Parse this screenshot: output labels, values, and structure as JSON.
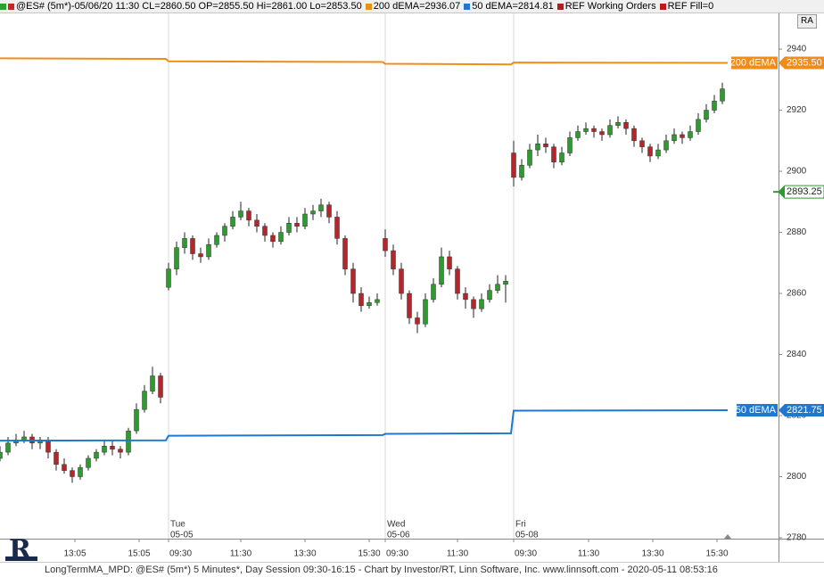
{
  "header": {
    "items": [
      {
        "text": "@ES# (5m*)-05/06/20 11:30 CL=2860.50 OP=2855.50 Hi=2861.00 Lo=2853.50",
        "colors": [
          "#2ea02e",
          "#c62828"
        ]
      },
      {
        "text": "200 dEMA=2936.07",
        "colors": [
          "#f08c1a"
        ]
      },
      {
        "text": "50 dEMA=2814.81",
        "colors": [
          "#1e78d2"
        ]
      },
      {
        "text": "REF Working Orders",
        "colors": [
          "#b71c1c"
        ]
      },
      {
        "text": "REF Fill=0",
        "colors": [
          "#b71c1c"
        ]
      }
    ],
    "button": "RA"
  },
  "footer": "LongTermMA_MPD: @ES# (5m*) 5 Minutes*, Day Session 09:30-16:15 - Chart by Investor/RT, Linn Software, Inc. www.linnsoft.com - 2020-05-11 08:53:16",
  "chart_data": {
    "type": "candlestick",
    "xlim": [
      0,
      291
    ],
    "ylim": [
      2779.7,
      2952
    ],
    "yticks": [
      2780,
      2800,
      2820,
      2840,
      2860,
      2880,
      2900,
      2920,
      2940
    ],
    "xticks": [
      {
        "value": 28,
        "label": "13:05"
      },
      {
        "value": 52,
        "label": "15:05"
      },
      {
        "value": 63,
        "label": "09:30"
      },
      {
        "value": 90,
        "label": "11:30"
      },
      {
        "value": 114,
        "label": "13:30"
      },
      {
        "value": 138,
        "label": "15:30"
      },
      {
        "value": 144,
        "label": "09:30"
      },
      {
        "value": 171,
        "label": "11:30"
      },
      {
        "value": 192,
        "label": "09:30"
      },
      {
        "value": 220,
        "label": "11:30"
      },
      {
        "value": 244,
        "label": "13:30"
      },
      {
        "value": 268,
        "label": "15:30"
      }
    ],
    "sessions": [
      {
        "x": 63,
        "day": "Tue",
        "date": "05-05"
      },
      {
        "x": 144,
        "day": "Wed",
        "date": "05-06"
      },
      {
        "x": 192,
        "day": "Fri",
        "date": "05-08"
      }
    ],
    "up_color": "#2e9b2e",
    "down_color": "#b5262b",
    "candles": {
      "x": [
        0,
        3,
        6,
        9,
        12,
        15,
        18,
        21,
        24,
        27,
        30,
        33,
        36,
        39,
        42,
        45,
        48,
        51,
        54,
        57,
        60,
        63,
        66,
        69,
        72,
        75,
        78,
        81,
        84,
        87,
        90,
        93,
        96,
        99,
        102,
        105,
        108,
        111,
        114,
        117,
        120,
        123,
        126,
        129,
        132,
        135,
        138,
        141,
        144,
        147,
        150,
        153,
        156,
        159,
        162,
        165,
        168,
        171,
        174,
        177,
        180,
        183,
        186,
        189,
        192,
        195,
        198,
        201,
        204,
        207,
        210,
        213,
        216,
        219,
        222,
        225,
        228,
        231,
        234,
        237,
        240,
        243,
        246,
        249,
        252,
        255,
        258,
        261,
        264,
        267,
        270
      ],
      "ohlc": [
        [
          2806,
          2810,
          2805,
          2808
        ],
        [
          2808,
          2813,
          2807,
          2811
        ],
        [
          2811,
          2814,
          2810,
          2812
        ],
        [
          2812,
          2815,
          2811,
          2813
        ],
        [
          2813,
          2814,
          2809,
          2811
        ],
        [
          2811,
          2813,
          2809,
          2812
        ],
        [
          2812,
          2813,
          2806,
          2808
        ],
        [
          2808,
          2809,
          2802,
          2804
        ],
        [
          2804,
          2806,
          2801,
          2802
        ],
        [
          2802,
          2803,
          2798,
          2800
        ],
        [
          2800,
          2804,
          2799,
          2803
        ],
        [
          2803,
          2807,
          2802,
          2806
        ],
        [
          2806,
          2809,
          2805,
          2808
        ],
        [
          2808,
          2812,
          2807,
          2810
        ],
        [
          2810,
          2812,
          2807,
          2809
        ],
        [
          2809,
          2810,
          2806,
          2808
        ],
        [
          2808,
          2816,
          2807,
          2815
        ],
        [
          2815,
          2824,
          2814,
          2822
        ],
        [
          2822,
          2830,
          2821,
          2828
        ],
        [
          2828,
          2836,
          2827,
          2833
        ],
        [
          2833,
          2834,
          2824,
          2826
        ],
        [
          2862,
          2870,
          2861,
          2868
        ],
        [
          2868,
          2877,
          2866,
          2875
        ],
        [
          2875,
          2880,
          2873,
          2878
        ],
        [
          2878,
          2879,
          2871,
          2873
        ],
        [
          2873,
          2875,
          2870,
          2872
        ],
        [
          2872,
          2878,
          2871,
          2876
        ],
        [
          2876,
          2880,
          2875,
          2879
        ],
        [
          2879,
          2883,
          2877,
          2882
        ],
        [
          2882,
          2887,
          2881,
          2885
        ],
        [
          2885,
          2890,
          2884,
          2887
        ],
        [
          2887,
          2888,
          2882,
          2884
        ],
        [
          2884,
          2886,
          2880,
          2882
        ],
        [
          2882,
          2883,
          2877,
          2879
        ],
        [
          2879,
          2880,
          2875,
          2877
        ],
        [
          2877,
          2882,
          2876,
          2880
        ],
        [
          2880,
          2885,
          2879,
          2883
        ],
        [
          2883,
          2885,
          2880,
          2882
        ],
        [
          2882,
          2888,
          2881,
          2886
        ],
        [
          2886,
          2889,
          2884,
          2887
        ],
        [
          2887,
          2891,
          2885,
          2889
        ],
        [
          2889,
          2890,
          2883,
          2885
        ],
        [
          2885,
          2887,
          2876,
          2878
        ],
        [
          2878,
          2879,
          2866,
          2868
        ],
        [
          2868,
          2870,
          2857,
          2860
        ],
        [
          2860,
          2862,
          2854,
          2856
        ],
        [
          2856,
          2859,
          2855,
          2857
        ],
        [
          2857,
          2860,
          2856,
          2858
        ],
        [
          2878,
          2881,
          2872,
          2874
        ],
        [
          2874,
          2876,
          2866,
          2868
        ],
        [
          2868,
          2870,
          2858,
          2860
        ],
        [
          2860,
          2861,
          2850,
          2852
        ],
        [
          2852,
          2854,
          2847,
          2850
        ],
        [
          2850,
          2860,
          2849,
          2858
        ],
        [
          2858,
          2865,
          2857,
          2863
        ],
        [
          2863,
          2875,
          2862,
          2872
        ],
        [
          2872,
          2874,
          2866,
          2868
        ],
        [
          2868,
          2869,
          2858,
          2860
        ],
        [
          2860,
          2862,
          2855,
          2858
        ],
        [
          2858,
          2859,
          2852,
          2855
        ],
        [
          2855,
          2860,
          2854,
          2858
        ],
        [
          2858,
          2863,
          2857,
          2861
        ],
        [
          2861,
          2866,
          2860,
          2863
        ],
        [
          2863,
          2866,
          2857,
          2864
        ],
        [
          2906,
          2910,
          2895,
          2898
        ],
        [
          2898,
          2904,
          2897,
          2902
        ],
        [
          2902,
          2909,
          2901,
          2907
        ],
        [
          2907,
          2912,
          2905,
          2909
        ],
        [
          2909,
          2911,
          2906,
          2908
        ],
        [
          2908,
          2909,
          2901,
          2903
        ],
        [
          2903,
          2908,
          2902,
          2906
        ],
        [
          2906,
          2913,
          2905,
          2911
        ],
        [
          2911,
          2915,
          2910,
          2913
        ],
        [
          2913,
          2916,
          2912,
          2914
        ],
        [
          2914,
          2915,
          2911,
          2913
        ],
        [
          2913,
          2914,
          2910,
          2912
        ],
        [
          2912,
          2917,
          2911,
          2915
        ],
        [
          2915,
          2918,
          2914,
          2916
        ],
        [
          2916,
          2917,
          2912,
          2914
        ],
        [
          2914,
          2915,
          2908,
          2910
        ],
        [
          2910,
          2911,
          2906,
          2908
        ],
        [
          2908,
          2909,
          2903,
          2905
        ],
        [
          2905,
          2909,
          2904,
          2907
        ],
        [
          2907,
          2912,
          2906,
          2910
        ],
        [
          2910,
          2914,
          2909,
          2912
        ],
        [
          2912,
          2913,
          2909,
          2911
        ],
        [
          2911,
          2915,
          2910,
          2913
        ],
        [
          2913,
          2919,
          2912,
          2917
        ],
        [
          2917,
          2922,
          2916,
          2920
        ],
        [
          2920,
          2925,
          2919,
          2923
        ],
        [
          2923,
          2929,
          2922,
          2927
        ]
      ]
    },
    "series": [
      {
        "name": "200 dEMA",
        "color": "#f08c1a",
        "x": [
          0,
          62,
          63,
          143,
          144,
          191,
          192,
          272
        ],
        "values": [
          2937,
          2936.8,
          2936,
          2935.8,
          2935.2,
          2935,
          2935.6,
          2935.5
        ],
        "last_label": "2935.50"
      },
      {
        "name": "50 dEMA",
        "color": "#1e78d2",
        "x": [
          0,
          62,
          63,
          143,
          144,
          191,
          192,
          272
        ],
        "values": [
          2811.8,
          2811.9,
          2813.4,
          2813.6,
          2814,
          2814.2,
          2821.6,
          2821.75
        ],
        "last_label": "2821.75"
      }
    ],
    "price_marker": {
      "value": 2893.25,
      "color": "#2e9b2e"
    }
  }
}
